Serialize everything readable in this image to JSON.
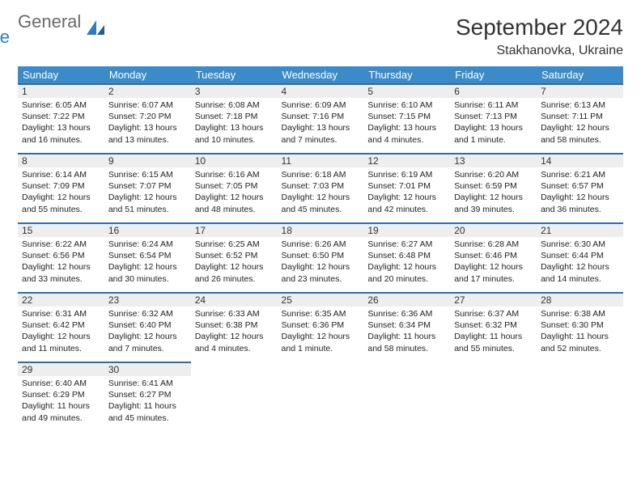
{
  "brand": {
    "part1": "General",
    "part2": "Blue"
  },
  "title": "September 2024",
  "location": "Stakhanovka, Ukraine",
  "colors": {
    "header_bg": "#3b8bc8",
    "header_text": "#ffffff",
    "daynum_bg": "#eeeeee",
    "row_border": "#2d6da3",
    "brand_gray": "#6a6a6a",
    "brand_blue": "#2d7cc0",
    "body_text": "#222222",
    "background": "#ffffff"
  },
  "typography": {
    "title_fontsize": 28,
    "location_fontsize": 16,
    "dayheader_fontsize": 13,
    "daynum_fontsize": 12,
    "body_fontsize": 10.5
  },
  "layout": {
    "columns": 7,
    "rows": 5,
    "first_day_column": 0
  },
  "day_headers": [
    "Sunday",
    "Monday",
    "Tuesday",
    "Wednesday",
    "Thursday",
    "Friday",
    "Saturday"
  ],
  "days": [
    {
      "n": 1,
      "sunrise": "6:05 AM",
      "sunset": "7:22 PM",
      "daylight": "13 hours and 16 minutes."
    },
    {
      "n": 2,
      "sunrise": "6:07 AM",
      "sunset": "7:20 PM",
      "daylight": "13 hours and 13 minutes."
    },
    {
      "n": 3,
      "sunrise": "6:08 AM",
      "sunset": "7:18 PM",
      "daylight": "13 hours and 10 minutes."
    },
    {
      "n": 4,
      "sunrise": "6:09 AM",
      "sunset": "7:16 PM",
      "daylight": "13 hours and 7 minutes."
    },
    {
      "n": 5,
      "sunrise": "6:10 AM",
      "sunset": "7:15 PM",
      "daylight": "13 hours and 4 minutes."
    },
    {
      "n": 6,
      "sunrise": "6:11 AM",
      "sunset": "7:13 PM",
      "daylight": "13 hours and 1 minute."
    },
    {
      "n": 7,
      "sunrise": "6:13 AM",
      "sunset": "7:11 PM",
      "daylight": "12 hours and 58 minutes."
    },
    {
      "n": 8,
      "sunrise": "6:14 AM",
      "sunset": "7:09 PM",
      "daylight": "12 hours and 55 minutes."
    },
    {
      "n": 9,
      "sunrise": "6:15 AM",
      "sunset": "7:07 PM",
      "daylight": "12 hours and 51 minutes."
    },
    {
      "n": 10,
      "sunrise": "6:16 AM",
      "sunset": "7:05 PM",
      "daylight": "12 hours and 48 minutes."
    },
    {
      "n": 11,
      "sunrise": "6:18 AM",
      "sunset": "7:03 PM",
      "daylight": "12 hours and 45 minutes."
    },
    {
      "n": 12,
      "sunrise": "6:19 AM",
      "sunset": "7:01 PM",
      "daylight": "12 hours and 42 minutes."
    },
    {
      "n": 13,
      "sunrise": "6:20 AM",
      "sunset": "6:59 PM",
      "daylight": "12 hours and 39 minutes."
    },
    {
      "n": 14,
      "sunrise": "6:21 AM",
      "sunset": "6:57 PM",
      "daylight": "12 hours and 36 minutes."
    },
    {
      "n": 15,
      "sunrise": "6:22 AM",
      "sunset": "6:56 PM",
      "daylight": "12 hours and 33 minutes."
    },
    {
      "n": 16,
      "sunrise": "6:24 AM",
      "sunset": "6:54 PM",
      "daylight": "12 hours and 30 minutes."
    },
    {
      "n": 17,
      "sunrise": "6:25 AM",
      "sunset": "6:52 PM",
      "daylight": "12 hours and 26 minutes."
    },
    {
      "n": 18,
      "sunrise": "6:26 AM",
      "sunset": "6:50 PM",
      "daylight": "12 hours and 23 minutes."
    },
    {
      "n": 19,
      "sunrise": "6:27 AM",
      "sunset": "6:48 PM",
      "daylight": "12 hours and 20 minutes."
    },
    {
      "n": 20,
      "sunrise": "6:28 AM",
      "sunset": "6:46 PM",
      "daylight": "12 hours and 17 minutes."
    },
    {
      "n": 21,
      "sunrise": "6:30 AM",
      "sunset": "6:44 PM",
      "daylight": "12 hours and 14 minutes."
    },
    {
      "n": 22,
      "sunrise": "6:31 AM",
      "sunset": "6:42 PM",
      "daylight": "12 hours and 11 minutes."
    },
    {
      "n": 23,
      "sunrise": "6:32 AM",
      "sunset": "6:40 PM",
      "daylight": "12 hours and 7 minutes."
    },
    {
      "n": 24,
      "sunrise": "6:33 AM",
      "sunset": "6:38 PM",
      "daylight": "12 hours and 4 minutes."
    },
    {
      "n": 25,
      "sunrise": "6:35 AM",
      "sunset": "6:36 PM",
      "daylight": "12 hours and 1 minute."
    },
    {
      "n": 26,
      "sunrise": "6:36 AM",
      "sunset": "6:34 PM",
      "daylight": "11 hours and 58 minutes."
    },
    {
      "n": 27,
      "sunrise": "6:37 AM",
      "sunset": "6:32 PM",
      "daylight": "11 hours and 55 minutes."
    },
    {
      "n": 28,
      "sunrise": "6:38 AM",
      "sunset": "6:30 PM",
      "daylight": "11 hours and 52 minutes."
    },
    {
      "n": 29,
      "sunrise": "6:40 AM",
      "sunset": "6:29 PM",
      "daylight": "11 hours and 49 minutes."
    },
    {
      "n": 30,
      "sunrise": "6:41 AM",
      "sunset": "6:27 PM",
      "daylight": "11 hours and 45 minutes."
    }
  ],
  "labels": {
    "sunrise": "Sunrise:",
    "sunset": "Sunset:",
    "daylight": "Daylight:"
  }
}
